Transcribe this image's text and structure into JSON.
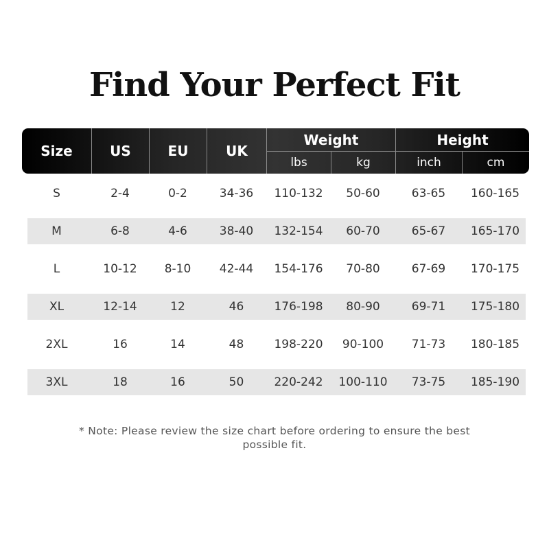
{
  "title": "Find Your Perfect Fit",
  "header": {
    "size": "Size",
    "us": "US",
    "eu": "EU",
    "uk": "UK",
    "weight": "Weight",
    "lbs": "lbs",
    "kg": "kg",
    "height": "Height",
    "inch": "inch",
    "cm": "cm"
  },
  "rows": [
    [
      "S",
      "2-4",
      "0-2",
      "34-36",
      "110-132",
      "50-60",
      "63-65",
      "160-165"
    ],
    [
      "M",
      "6-8",
      "4-6",
      "38-40",
      "132-154",
      "60-70",
      "65-67",
      "165-170"
    ],
    [
      "L",
      "10-12",
      "8-10",
      "42-44",
      "154-176",
      "70-80",
      "67-69",
      "170-175"
    ],
    [
      "XL",
      "12-14",
      "12",
      "46",
      "176-198",
      "80-90",
      "69-71",
      "175-180"
    ],
    [
      "2XL",
      "16",
      "14",
      "48",
      "198-220",
      "90-100",
      "71-73",
      "180-185"
    ],
    [
      "3XL",
      "18",
      "16",
      "50",
      "220-242",
      "100-110",
      "73-75",
      "185-190"
    ]
  ],
  "note": "* Note: Please review the size chart before ordering to ensure the best possible fit.",
  "colors": {
    "header_dark": "#000000",
    "header_mid": "#333333",
    "stripe": "#e6e6e6"
  }
}
